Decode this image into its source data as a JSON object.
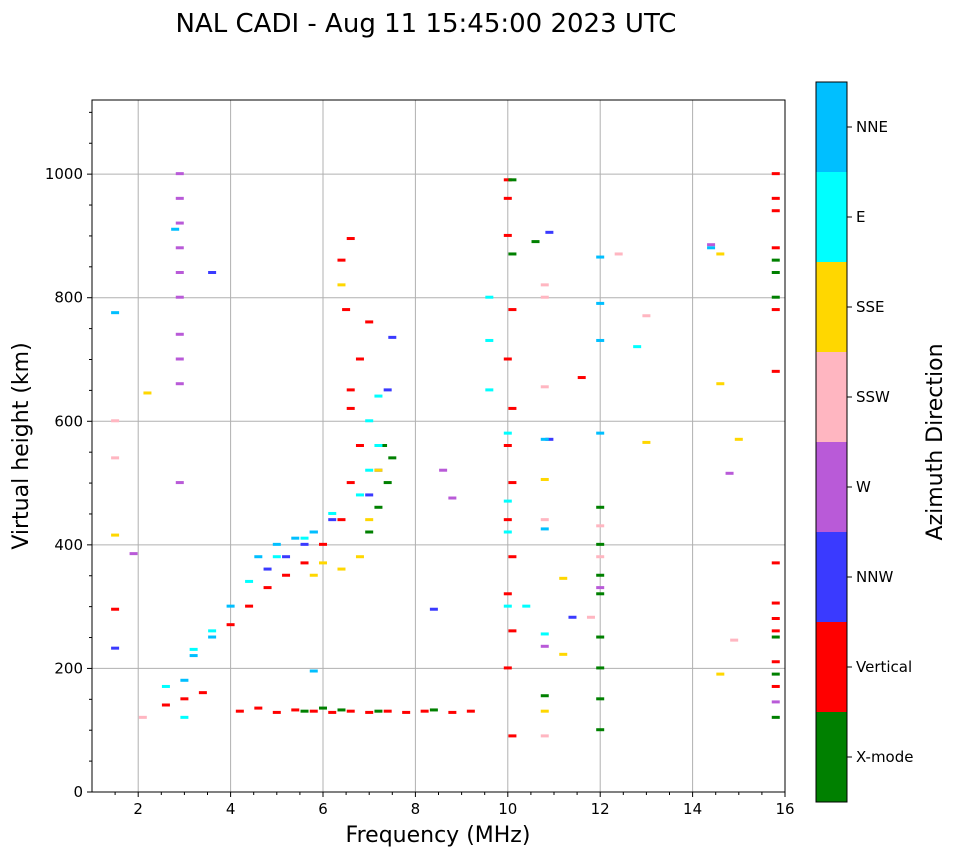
{
  "chart_data": {
    "type": "scatter",
    "title": "NAL CADI - Aug 11 15:45:00 2023 UTC",
    "xlabel": "Frequency (MHz)",
    "ylabel": "Virtual height (km)",
    "xlim": [
      1,
      16
    ],
    "ylim": [
      0,
      1120
    ],
    "xticks": [
      2,
      4,
      6,
      8,
      10,
      12,
      14,
      16
    ],
    "yticks": [
      0,
      200,
      400,
      600,
      800,
      1000
    ],
    "grid": true,
    "colorbar": {
      "title": "Azimuth Direction",
      "categories": [
        {
          "name": "X-mode",
          "color": "#008000"
        },
        {
          "name": "Vertical",
          "color": "#ff0000"
        },
        {
          "name": "NNW",
          "color": "#3a3aff"
        },
        {
          "name": "W",
          "color": "#b95ad8"
        },
        {
          "name": "SSW",
          "color": "#ffb6c1"
        },
        {
          "name": "SSE",
          "color": "#ffd700"
        },
        {
          "name": "E",
          "color": "#00ffff"
        },
        {
          "name": "NNE",
          "color": "#00bfff"
        }
      ]
    },
    "series": [
      {
        "name": "Vertical",
        "points": [
          [
            4.2,
            130
          ],
          [
            4.6,
            135
          ],
          [
            5.0,
            128
          ],
          [
            5.4,
            132
          ],
          [
            5.8,
            130
          ],
          [
            6.2,
            128
          ],
          [
            6.6,
            130
          ],
          [
            7.0,
            128
          ],
          [
            7.4,
            130
          ],
          [
            7.8,
            128
          ],
          [
            8.2,
            130
          ],
          [
            8.8,
            128
          ],
          [
            9.2,
            130
          ],
          [
            3.0,
            150
          ],
          [
            3.4,
            160
          ],
          [
            2.6,
            140
          ],
          [
            4.0,
            270
          ],
          [
            4.4,
            300
          ],
          [
            4.8,
            330
          ],
          [
            5.2,
            350
          ],
          [
            5.6,
            370
          ],
          [
            6.0,
            400
          ],
          [
            6.4,
            440
          ],
          [
            6.6,
            500
          ],
          [
            6.8,
            560
          ],
          [
            6.6,
            620
          ],
          [
            6.6,
            650
          ],
          [
            6.8,
            700
          ],
          [
            7.0,
            760
          ],
          [
            6.5,
            780
          ],
          [
            6.6,
            895
          ],
          [
            6.4,
            860
          ],
          [
            10.0,
            990
          ],
          [
            10.0,
            960
          ],
          [
            10.0,
            900
          ],
          [
            10.1,
            780
          ],
          [
            10.0,
            700
          ],
          [
            10.1,
            620
          ],
          [
            10.0,
            560
          ],
          [
            10.1,
            500
          ],
          [
            10.0,
            440
          ],
          [
            10.1,
            380
          ],
          [
            10.0,
            320
          ],
          [
            10.1,
            260
          ],
          [
            10.0,
            200
          ],
          [
            10.1,
            90
          ],
          [
            15.8,
            1000
          ],
          [
            15.8,
            960
          ],
          [
            15.8,
            940
          ],
          [
            15.8,
            880
          ],
          [
            15.8,
            780
          ],
          [
            15.8,
            680
          ],
          [
            15.8,
            370
          ],
          [
            15.8,
            305
          ],
          [
            15.8,
            280
          ],
          [
            15.8,
            260
          ],
          [
            15.8,
            210
          ],
          [
            15.8,
            170
          ],
          [
            1.5,
            295
          ],
          [
            11.6,
            670
          ]
        ]
      },
      {
        "name": "X-mode",
        "points": [
          [
            5.6,
            130
          ],
          [
            6.0,
            135
          ],
          [
            6.4,
            132
          ],
          [
            7.2,
            130
          ],
          [
            8.4,
            132
          ],
          [
            7.0,
            420
          ],
          [
            7.2,
            460
          ],
          [
            7.4,
            500
          ],
          [
            7.5,
            540
          ],
          [
            7.3,
            560
          ],
          [
            10.1,
            990
          ],
          [
            10.6,
            890
          ],
          [
            10.1,
            870
          ],
          [
            12.0,
            460
          ],
          [
            12.0,
            400
          ],
          [
            12.0,
            350
          ],
          [
            12.0,
            320
          ],
          [
            12.0,
            250
          ],
          [
            12.0,
            200
          ],
          [
            12.0,
            150
          ],
          [
            12.0,
            100
          ],
          [
            15.8,
            860
          ],
          [
            15.8,
            840
          ],
          [
            15.8,
            800
          ],
          [
            15.8,
            250
          ],
          [
            15.8,
            190
          ],
          [
            15.8,
            120
          ],
          [
            10.8,
            155
          ]
        ]
      },
      {
        "name": "NNW",
        "points": [
          [
            4.8,
            360
          ],
          [
            5.2,
            380
          ],
          [
            5.6,
            400
          ],
          [
            5.8,
            420
          ],
          [
            6.2,
            440
          ],
          [
            7.0,
            480
          ],
          [
            7.2,
            520
          ],
          [
            7.4,
            650
          ],
          [
            7.5,
            735
          ],
          [
            10.9,
            905
          ],
          [
            10.9,
            570
          ],
          [
            11.4,
            282
          ],
          [
            8.4,
            295
          ],
          [
            1.5,
            232
          ],
          [
            3.6,
            840
          ]
        ]
      },
      {
        "name": "W",
        "points": [
          [
            2.9,
            1000
          ],
          [
            2.9,
            960
          ],
          [
            2.9,
            920
          ],
          [
            2.9,
            880
          ],
          [
            2.9,
            840
          ],
          [
            2.9,
            800
          ],
          [
            2.9,
            740
          ],
          [
            2.9,
            700
          ],
          [
            2.9,
            660
          ],
          [
            2.9,
            500
          ],
          [
            14.4,
            885
          ],
          [
            14.8,
            515
          ],
          [
            8.6,
            520
          ],
          [
            8.8,
            475
          ],
          [
            12.0,
            330
          ],
          [
            10.8,
            235
          ],
          [
            15.8,
            145
          ],
          [
            1.9,
            385
          ]
        ]
      },
      {
        "name": "SSW",
        "points": [
          [
            1.5,
            600
          ],
          [
            1.5,
            540
          ],
          [
            2.1,
            120
          ],
          [
            10.8,
            820
          ],
          [
            10.8,
            800
          ],
          [
            10.8,
            655
          ],
          [
            10.8,
            440
          ],
          [
            12.4,
            870
          ],
          [
            13.0,
            770
          ],
          [
            12.0,
            430
          ],
          [
            12.0,
            380
          ],
          [
            14.9,
            245
          ],
          [
            10.8,
            90
          ],
          [
            11.8,
            282
          ]
        ]
      },
      {
        "name": "SSE",
        "points": [
          [
            5.8,
            350
          ],
          [
            6.0,
            370
          ],
          [
            6.4,
            360
          ],
          [
            6.8,
            380
          ],
          [
            7.0,
            440
          ],
          [
            7.2,
            520
          ],
          [
            6.4,
            820
          ],
          [
            14.6,
            870
          ],
          [
            14.6,
            660
          ],
          [
            15.0,
            570
          ],
          [
            13.0,
            565
          ],
          [
            11.2,
            345
          ],
          [
            11.2,
            222
          ],
          [
            14.6,
            190
          ],
          [
            10.8,
            505
          ],
          [
            10.8,
            130
          ],
          [
            1.5,
            415
          ],
          [
            2.2,
            645
          ]
        ]
      },
      {
        "name": "E",
        "points": [
          [
            3.2,
            230
          ],
          [
            3.6,
            260
          ],
          [
            4.4,
            340
          ],
          [
            5.0,
            380
          ],
          [
            5.6,
            410
          ],
          [
            6.2,
            450
          ],
          [
            6.8,
            480
          ],
          [
            7.0,
            520
          ],
          [
            7.2,
            560
          ],
          [
            7.0,
            600
          ],
          [
            7.2,
            640
          ],
          [
            9.6,
            800
          ],
          [
            9.6,
            730
          ],
          [
            9.6,
            650
          ],
          [
            10.0,
            580
          ],
          [
            10.0,
            470
          ],
          [
            10.0,
            420
          ],
          [
            10.0,
            300
          ],
          [
            10.4,
            300
          ],
          [
            10.8,
            255
          ],
          [
            12.8,
            720
          ],
          [
            2.6,
            170
          ],
          [
            3.0,
            120
          ]
        ]
      },
      {
        "name": "NNE",
        "points": [
          [
            3.0,
            180
          ],
          [
            3.2,
            220
          ],
          [
            3.6,
            250
          ],
          [
            4.0,
            300
          ],
          [
            4.6,
            380
          ],
          [
            5.0,
            400
          ],
          [
            5.4,
            410
          ],
          [
            5.8,
            420
          ],
          [
            10.8,
            570
          ],
          [
            12.0,
            580
          ],
          [
            12.0,
            790
          ],
          [
            12.0,
            730
          ],
          [
            14.4,
            880
          ],
          [
            12.0,
            865
          ],
          [
            10.8,
            425
          ],
          [
            5.8,
            195
          ],
          [
            1.5,
            775
          ],
          [
            2.8,
            910
          ]
        ]
      }
    ]
  }
}
